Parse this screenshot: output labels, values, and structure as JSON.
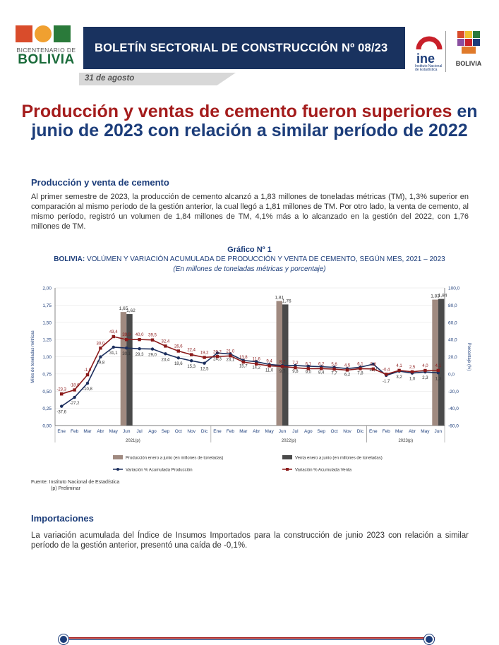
{
  "header": {
    "left_logo_line1": "BICENTENARIO DE",
    "left_logo_line2": "BOLIVIA",
    "banner_title": "BOLETÍN SECTORIAL DE CONSTRUCCIÓN Nº 08/23",
    "ine_word": "ine",
    "ine_sub": "Instituto Nacional de Estadística",
    "right_logo_text": "BOLIVIA",
    "date": "31 de agosto"
  },
  "headline": {
    "red_part": "Producción y ventas de cemento fueron superiores",
    "blue_part": " en junio de 2023 con relación a similar período de 2022"
  },
  "section1": {
    "heading": "Producción y venta de cemento",
    "paragraph": "Al primer semestre de 2023, la producción de cemento alcanzó a 1,83 millones de toneladas métricas (TM), 1,3% superior en comparación al mismo período de la gestión anterior, la cual llegó a 1,81 millones de TM. Por otro lado, la venta de cemento, al mismo período, registró un volumen de 1,84 millones de TM, 4,1% más a lo alcanzado en la gestión del 2022, con 1,76 millones de TM."
  },
  "graph": {
    "number": "Gráfico Nº 1",
    "title_bold": "BOLIVIA:",
    "title_rest": " VOLÚMEN Y VARIACIÓN ACUMULADA DE PRODUCCIÓN Y VENTA DE CEMENTO, SEGÚN MES, 2021 – 2023",
    "units": "(En millones de toneladas métricas y porcentaje)",
    "source": "Fuente: Instituto Nacional de Estadística",
    "note": "(p) Preliminar"
  },
  "chart_data": {
    "type": "bar+line",
    "ylabel": "Miles de toneladas métricas",
    "y2label": "Porcentaje (%)",
    "ylim": [
      0,
      2
    ],
    "y2lim": [
      -60,
      100
    ],
    "y_ticks": [
      "0,00",
      "0,25",
      "0,50",
      "0,75",
      "1,00",
      "1,25",
      "1,50",
      "1,75",
      "2,00"
    ],
    "y2_ticks": [
      "-60,0",
      "-40,0",
      "-20,0",
      "0,0",
      "20,0",
      "40,0",
      "60,0",
      "80,0",
      "100,0"
    ],
    "categories": [
      "Ene",
      "Feb",
      "Mar",
      "Abr",
      "May",
      "Jun",
      "Jul",
      "Ago",
      "Sep",
      "Oct",
      "Nov",
      "Dic",
      "Ene",
      "Feb",
      "Mar",
      "Abr",
      "May",
      "Jun",
      "Jul",
      "Ago",
      "Sep",
      "Oct",
      "Nov",
      "Dic",
      "Ene",
      "Feb",
      "Mar",
      "Abr",
      "May",
      "Jun"
    ],
    "year_groups": [
      {
        "label": "2021",
        "sup": "(p)",
        "start": 0,
        "end": 11
      },
      {
        "label": "2022",
        "sup": "(p)",
        "start": 12,
        "end": 23
      },
      {
        "label": "2023",
        "sup": "(p)",
        "start": 24,
        "end": 29
      }
    ],
    "bars": [
      {
        "x_index": 5,
        "produccion": 1.65,
        "produccion_label": "1,65",
        "venta": 1.62,
        "venta_label": "1,62"
      },
      {
        "x_index": 17,
        "produccion": 1.81,
        "produccion_label": "1,81",
        "venta": 1.76,
        "venta_label": "1,76"
      },
      {
        "x_index": 29,
        "produccion": 1.83,
        "produccion_label": "1,83",
        "venta": 1.84,
        "venta_label": "1,84"
      }
    ],
    "series": [
      {
        "name": "Variación % Acumulada Producción",
        "values": [
          -37.6,
          -27.2,
          -10.8,
          19.8,
          31.1,
          30.1,
          29.3,
          29.0,
          23.4,
          18.6,
          15.3,
          12.5,
          24.3,
          23.1,
          15.7,
          14.2,
          11.0,
          9.7,
          9.8,
          9.0,
          8.4,
          7.7,
          6.2,
          7.8,
          11.4,
          -1.7,
          3.2,
          1.0,
          2.3,
          1.3
        ],
        "labels": [
          "-37,6",
          "-27,2",
          "-10,8",
          "19,8",
          "31,1",
          "30,1",
          "29,3",
          "29,0",
          "23,4",
          "18,6",
          "15,3",
          "12,5",
          "24,3",
          "23,1",
          "15,7",
          "14,2",
          "11,0",
          "9,7",
          "9,8",
          "9,0",
          "8,4",
          "7,7",
          "6,2",
          "7,8",
          "11,4",
          "-1,7",
          "3,2",
          "1,0",
          "2,3",
          "1,3"
        ]
      },
      {
        "name": "Variación % Acumulada Venta",
        "values": [
          -23.3,
          -18.6,
          -1.0,
          30.0,
          43.4,
          39.9,
          40.0,
          39.5,
          32.4,
          26.6,
          22.4,
          19.2,
          20.2,
          21.0,
          13.8,
          11.6,
          9.4,
          8.7,
          7.2,
          6.1,
          6.2,
          5.6,
          4.5,
          6.1,
          5.8,
          -0.4,
          4.1,
          2.5,
          4.0,
          4.1
        ],
        "labels": [
          "-23,3",
          "-18,6",
          "-1,0",
          "30,0",
          "43,4",
          "39,9",
          "40,0",
          "39,5",
          "32,4",
          "26,6",
          "22,4",
          "19,2",
          "20,2",
          "21,0",
          "13,8",
          "11,6",
          "9,4",
          "8,7",
          "7,2",
          "6,1",
          "6,2",
          "5,6",
          "4,5",
          "6,1",
          "5,8",
          "-0,4",
          "4,1",
          "2,5",
          "4,0",
          "4,1"
        ]
      }
    ],
    "legend": [
      {
        "label": "Producción enero a junio (en millones de toneladas)",
        "color": "#a08a80"
      },
      {
        "label": "Venta enero a junio (en millones de toneladas)",
        "color": "#4a4a4a"
      },
      {
        "label": "Variación % Acumulada Producción",
        "color": "#1c2f5e"
      },
      {
        "label": "Variación % Acumulada Venta",
        "color": "#8b1a1a"
      }
    ],
    "legend_position": "bottom"
  },
  "section2": {
    "heading": "Importaciones",
    "paragraph": "La variación acumulada del Índice de Insumos Importados para la construcción de junio 2023 con relación a similar período de la gestión anterior, presentó una caída de -0,1%."
  },
  "colors": {
    "navy": "#19325f",
    "title_blue": "#1c3d7a",
    "title_red": "#a41c1c"
  }
}
